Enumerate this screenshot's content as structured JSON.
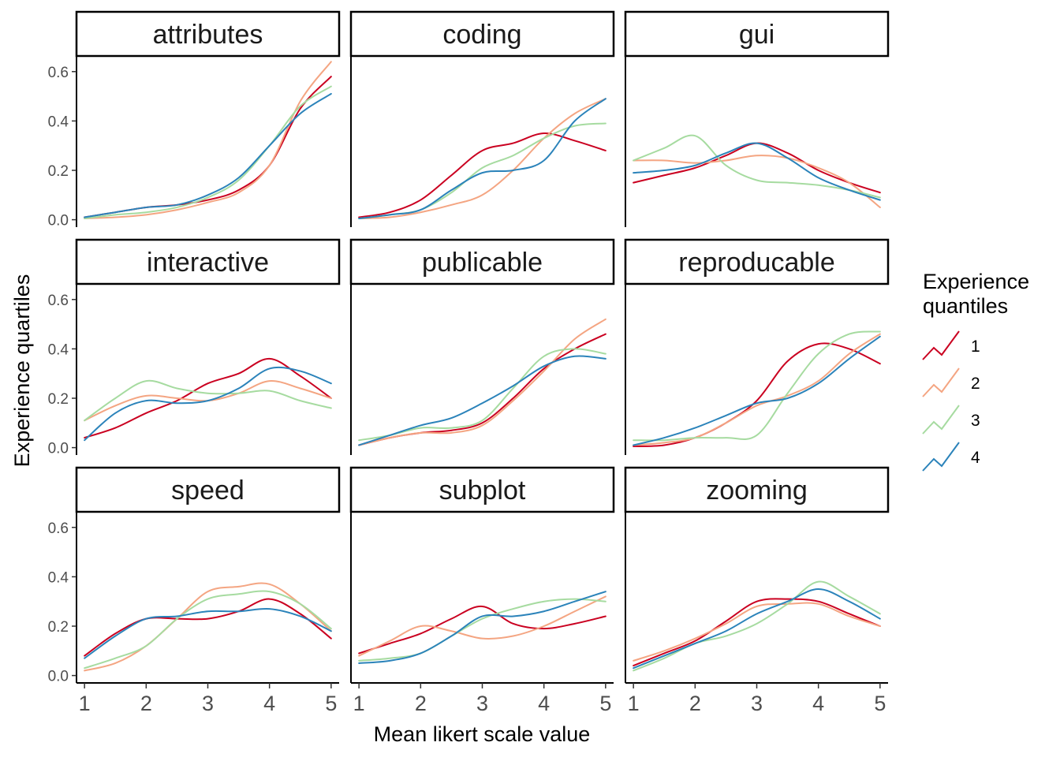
{
  "chart_data": {
    "type": "line",
    "subtype": "faceted density",
    "facet_rows": 3,
    "facet_cols": 3,
    "xlabel": "Mean likert scale value",
    "ylabel": "Experience quartiles",
    "x_ticks": [
      1,
      2,
      3,
      4,
      5
    ],
    "y_ticks": [
      0.0,
      0.2,
      0.4,
      0.6
    ],
    "y_tick_labels": [
      "0.0",
      "0.2",
      "0.4",
      "0.6"
    ],
    "xlim": [
      0.87,
      5.13
    ],
    "ylim": [
      -0.03,
      0.66
    ],
    "grid": false,
    "legend": {
      "title_lines": [
        "Experience",
        "quantiles"
      ],
      "position": "right",
      "entries": [
        "1",
        "2",
        "3",
        "4"
      ]
    },
    "series_colors": [
      "#ca0020",
      "#f4a582",
      "#a6dba0",
      "#2b83ba"
    ],
    "x_sample": [
      1.0,
      1.5,
      2.0,
      2.5,
      3.0,
      3.5,
      4.0,
      4.5,
      5.0
    ],
    "facets": [
      {
        "label": "attributes",
        "series": [
          {
            "name": "1",
            "values": [
              0.01,
              0.03,
              0.05,
              0.06,
              0.08,
              0.12,
              0.22,
              0.45,
              0.58
            ]
          },
          {
            "name": "2",
            "values": [
              0.005,
              0.01,
              0.02,
              0.04,
              0.07,
              0.11,
              0.22,
              0.48,
              0.64
            ]
          },
          {
            "name": "3",
            "values": [
              0.005,
              0.02,
              0.03,
              0.05,
              0.09,
              0.16,
              0.3,
              0.46,
              0.54
            ]
          },
          {
            "name": "4",
            "values": [
              0.01,
              0.03,
              0.05,
              0.06,
              0.1,
              0.17,
              0.3,
              0.43,
              0.51
            ]
          }
        ]
      },
      {
        "label": "coding",
        "series": [
          {
            "name": "1",
            "values": [
              0.01,
              0.03,
              0.08,
              0.18,
              0.28,
              0.31,
              0.35,
              0.32,
              0.28
            ]
          },
          {
            "name": "2",
            "values": [
              0.005,
              0.01,
              0.03,
              0.06,
              0.1,
              0.2,
              0.33,
              0.43,
              0.49
            ]
          },
          {
            "name": "3",
            "values": [
              0.005,
              0.02,
              0.04,
              0.11,
              0.21,
              0.26,
              0.33,
              0.38,
              0.39
            ]
          },
          {
            "name": "4",
            "values": [
              0.005,
              0.02,
              0.04,
              0.12,
              0.19,
              0.2,
              0.24,
              0.4,
              0.49
            ]
          }
        ]
      },
      {
        "label": "gui",
        "series": [
          {
            "name": "1",
            "values": [
              0.15,
              0.18,
              0.21,
              0.26,
              0.31,
              0.27,
              0.2,
              0.15,
              0.11
            ]
          },
          {
            "name": "2",
            "values": [
              0.24,
              0.24,
              0.23,
              0.24,
              0.26,
              0.25,
              0.21,
              0.15,
              0.05
            ]
          },
          {
            "name": "3",
            "values": [
              0.24,
              0.29,
              0.34,
              0.22,
              0.16,
              0.15,
              0.14,
              0.12,
              0.09
            ]
          },
          {
            "name": "4",
            "values": [
              0.19,
              0.2,
              0.22,
              0.27,
              0.31,
              0.25,
              0.17,
              0.12,
              0.08
            ]
          }
        ]
      },
      {
        "label": "interactive",
        "series": [
          {
            "name": "1",
            "values": [
              0.04,
              0.08,
              0.14,
              0.19,
              0.26,
              0.3,
              0.36,
              0.29,
              0.2
            ]
          },
          {
            "name": "2",
            "values": [
              0.11,
              0.17,
              0.21,
              0.2,
              0.19,
              0.22,
              0.27,
              0.24,
              0.2
            ]
          },
          {
            "name": "3",
            "values": [
              0.11,
              0.2,
              0.27,
              0.24,
              0.22,
              0.22,
              0.23,
              0.19,
              0.16
            ]
          },
          {
            "name": "4",
            "values": [
              0.03,
              0.14,
              0.19,
              0.18,
              0.19,
              0.24,
              0.32,
              0.31,
              0.26
            ]
          }
        ]
      },
      {
        "label": "publicable",
        "series": [
          {
            "name": "1",
            "values": [
              0.01,
              0.04,
              0.06,
              0.07,
              0.1,
              0.2,
              0.32,
              0.4,
              0.46
            ]
          },
          {
            "name": "2",
            "values": [
              0.01,
              0.04,
              0.06,
              0.06,
              0.09,
              0.19,
              0.31,
              0.44,
              0.52
            ]
          },
          {
            "name": "3",
            "values": [
              0.03,
              0.05,
              0.08,
              0.08,
              0.11,
              0.24,
              0.37,
              0.4,
              0.38
            ]
          },
          {
            "name": "4",
            "values": [
              0.01,
              0.05,
              0.09,
              0.12,
              0.18,
              0.25,
              0.33,
              0.37,
              0.36
            ]
          }
        ]
      },
      {
        "label": "reproducable",
        "series": [
          {
            "name": "1",
            "values": [
              0.005,
              0.01,
              0.04,
              0.1,
              0.19,
              0.35,
              0.42,
              0.4,
              0.34
            ]
          },
          {
            "name": "2",
            "values": [
              0.01,
              0.02,
              0.04,
              0.1,
              0.17,
              0.21,
              0.27,
              0.38,
              0.46
            ]
          },
          {
            "name": "3",
            "values": [
              0.03,
              0.03,
              0.04,
              0.04,
              0.05,
              0.22,
              0.38,
              0.46,
              0.47
            ]
          },
          {
            "name": "4",
            "values": [
              0.01,
              0.04,
              0.08,
              0.13,
              0.18,
              0.2,
              0.26,
              0.36,
              0.45
            ]
          }
        ]
      },
      {
        "label": "speed",
        "series": [
          {
            "name": "1",
            "values": [
              0.08,
              0.17,
              0.23,
              0.23,
              0.23,
              0.26,
              0.31,
              0.25,
              0.15
            ]
          },
          {
            "name": "2",
            "values": [
              0.02,
              0.05,
              0.12,
              0.23,
              0.34,
              0.36,
              0.37,
              0.29,
              0.18
            ]
          },
          {
            "name": "3",
            "values": [
              0.03,
              0.07,
              0.12,
              0.23,
              0.31,
              0.33,
              0.34,
              0.29,
              0.19
            ]
          },
          {
            "name": "4",
            "values": [
              0.07,
              0.16,
              0.23,
              0.24,
              0.26,
              0.26,
              0.27,
              0.24,
              0.18
            ]
          }
        ]
      },
      {
        "label": "subplot",
        "series": [
          {
            "name": "1",
            "values": [
              0.09,
              0.13,
              0.17,
              0.23,
              0.28,
              0.21,
              0.19,
              0.21,
              0.24
            ]
          },
          {
            "name": "2",
            "values": [
              0.08,
              0.14,
              0.2,
              0.18,
              0.15,
              0.16,
              0.2,
              0.26,
              0.32
            ]
          },
          {
            "name": "3",
            "values": [
              0.06,
              0.07,
              0.09,
              0.16,
              0.23,
              0.27,
              0.3,
              0.31,
              0.3
            ]
          },
          {
            "name": "4",
            "values": [
              0.05,
              0.06,
              0.09,
              0.16,
              0.24,
              0.24,
              0.26,
              0.3,
              0.34
            ]
          }
        ]
      },
      {
        "label": "zooming",
        "series": [
          {
            "name": "1",
            "values": [
              0.04,
              0.09,
              0.14,
              0.22,
              0.3,
              0.31,
              0.3,
              0.25,
              0.2
            ]
          },
          {
            "name": "2",
            "values": [
              0.06,
              0.1,
              0.15,
              0.21,
              0.28,
              0.29,
              0.29,
              0.24,
              0.2
            ]
          },
          {
            "name": "3",
            "values": [
              0.02,
              0.07,
              0.13,
              0.16,
              0.21,
              0.29,
              0.38,
              0.32,
              0.25
            ]
          },
          {
            "name": "4",
            "values": [
              0.03,
              0.08,
              0.13,
              0.18,
              0.25,
              0.3,
              0.35,
              0.3,
              0.23
            ]
          }
        ]
      }
    ]
  }
}
